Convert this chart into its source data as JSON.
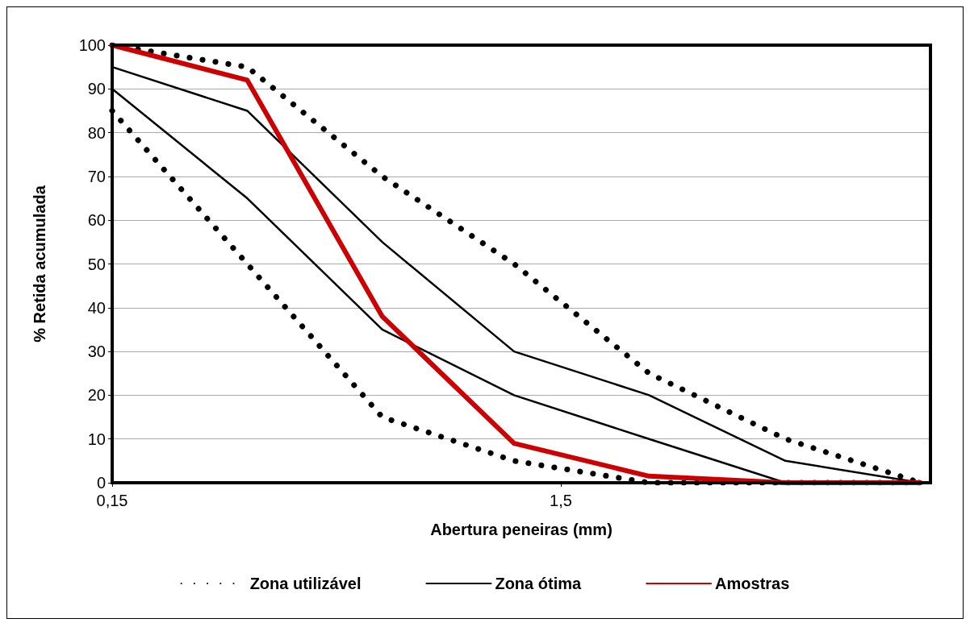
{
  "chart_data": {
    "type": "line",
    "xlabel": "Abertura peneiras (mm)",
    "ylabel": "% Retida acumulada",
    "x": [
      0.15,
      0.3,
      0.6,
      1.18,
      2.36,
      4.75,
      9.5
    ],
    "log": "x",
    "xlim": [
      0.15,
      10
    ],
    "xticks": [
      {
        "value": 0.15,
        "label": "0,15"
      },
      {
        "value": 1.5,
        "label": "1,5"
      }
    ],
    "ylim": [
      0,
      100
    ],
    "yticks": [
      0,
      10,
      20,
      30,
      40,
      50,
      60,
      70,
      80,
      90,
      100
    ],
    "grid": "y",
    "legend": "bottom",
    "marker": "none",
    "series": [
      {
        "name": "Zona utilizável",
        "color": "#000000",
        "line_style": "dotted",
        "values": [
          100,
          95,
          70,
          50,
          25,
          10,
          0
        ]
      },
      {
        "color": "#000000",
        "line_style": "dotted",
        "values": [
          85,
          50,
          15,
          5,
          0,
          0,
          0
        ]
      },
      {
        "name": "Zona ótima",
        "color": "#000000",
        "line_style": "solid",
        "values": [
          95,
          85,
          55,
          30,
          20,
          5,
          0
        ]
      },
      {
        "color": "#000000",
        "line_style": "solid",
        "values": [
          90,
          65,
          35,
          20,
          10,
          0,
          0
        ]
      },
      {
        "name": "Amostras",
        "color": "#cc0000",
        "line_style": "solid",
        "values": [
          100,
          92,
          38,
          9,
          1.5,
          0,
          0
        ]
      }
    ]
  }
}
